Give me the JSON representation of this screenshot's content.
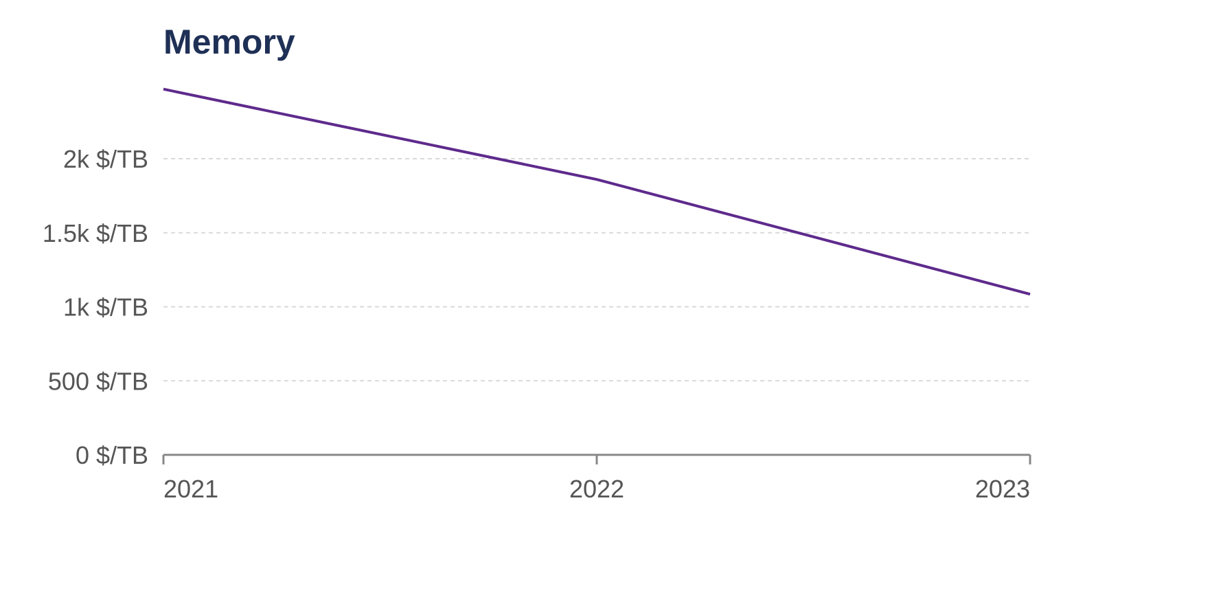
{
  "chart_data": {
    "type": "line",
    "title": "Memory",
    "xlabel": "",
    "ylabel": "",
    "x": [
      2021,
      2022,
      2023
    ],
    "x_tick_labels": [
      "2021",
      "2022",
      "2023"
    ],
    "series": [
      {
        "values": [
          2470,
          1860,
          1085
        ],
        "color": "#5e2a8c"
      }
    ],
    "y_ticks": [
      0,
      500,
      1000,
      1500,
      2000
    ],
    "y_tick_labels": [
      "0 $/TB",
      "500 $/TB",
      "1k $/TB",
      "1.5k $/TB",
      "2k $/TB"
    ],
    "ylim": [
      0,
      2470
    ],
    "xlim": [
      2021,
      2023
    ],
    "grid": "horizontal dashed",
    "legend": "none",
    "colors": {
      "title": "#1f3056",
      "grid": "#d9d9d9",
      "axis": "#888888",
      "tick_text": "#555555"
    }
  }
}
